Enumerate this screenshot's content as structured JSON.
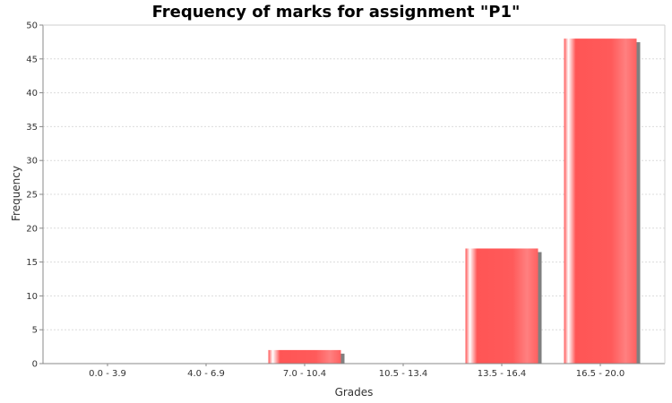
{
  "chart_data": {
    "type": "bar",
    "title": "Frequency of marks for assignment \"P1\"",
    "xlabel": "Grades",
    "ylabel": "Frequency",
    "categories": [
      "0.0 - 3.9",
      "4.0 - 6.9",
      "7.0 - 10.4",
      "10.5 - 13.4",
      "13.5 - 16.4",
      "16.5 - 20.0"
    ],
    "values": [
      0,
      0,
      2,
      0,
      17,
      48
    ],
    "ylim": [
      0,
      50
    ],
    "yticks": [
      0,
      5,
      10,
      15,
      20,
      25,
      30,
      35,
      40,
      45,
      50
    ],
    "grid": true,
    "legend": "none",
    "colors": {
      "bar_base": "#ff5555",
      "bar_highlight": "#ffffff",
      "bar_light": "#ff8080",
      "shadow": "#808080"
    }
  }
}
